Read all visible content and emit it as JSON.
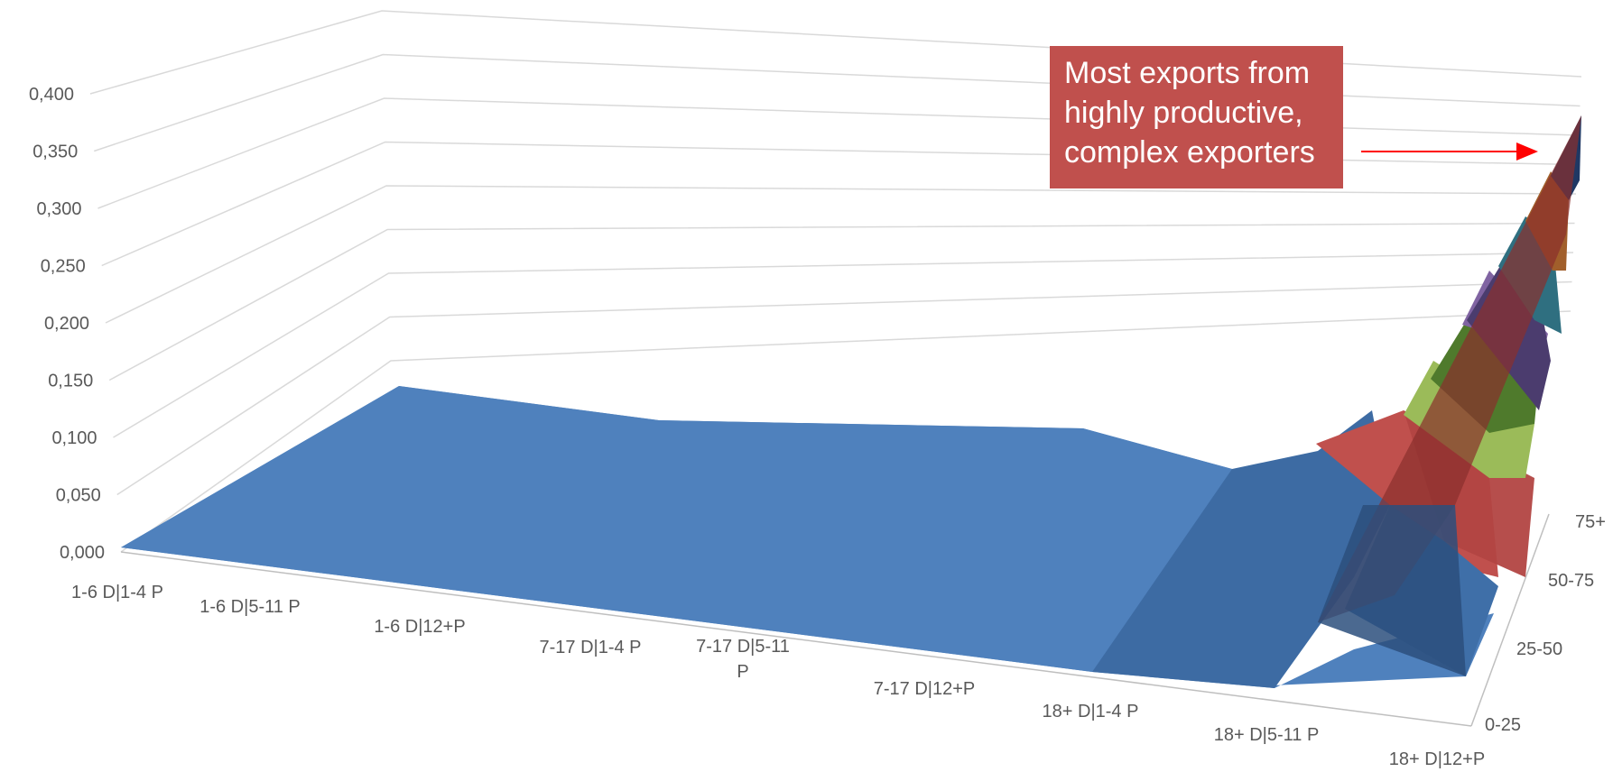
{
  "chart_data": {
    "type": "surface-3d",
    "title": "",
    "y_ticks": [
      "0,000",
      "0,050",
      "0,100",
      "0,150",
      "0,200",
      "0,250",
      "0,300",
      "0,350",
      "0,400"
    ],
    "y_values": [
      0,
      0.05,
      0.1,
      0.15,
      0.2,
      0.25,
      0.3,
      0.35,
      0.4
    ],
    "ylim": [
      0,
      0.4
    ],
    "x_categories": [
      [
        "1-6 D|1-4 P"
      ],
      [
        "1-6 D|5-11 P"
      ],
      [
        "1-6 D|12+P"
      ],
      [
        "7-17 D|1-4 P"
      ],
      [
        "7-17 D|5-11",
        "P"
      ],
      [
        "7-17 D|12+P"
      ],
      [
        "18+ D|1-4 P"
      ],
      [
        "18+ D|5-11 P"
      ],
      [
        "18+ D|12+P"
      ]
    ],
    "depth_categories": [
      "0-25",
      "25-50",
      "50-75",
      "75+"
    ],
    "color_bands": [
      "#4f81bd",
      "#c0504d",
      "#9bbb59",
      "#8064a2",
      "#4bacc6",
      "#f79646",
      "#1f3864"
    ],
    "grid": true,
    "annotation": {
      "lines": [
        "Most exports from",
        "highly productive,",
        "complex exporters"
      ],
      "box_color": "#c0504d",
      "arrow_color": "#ff0000"
    }
  }
}
